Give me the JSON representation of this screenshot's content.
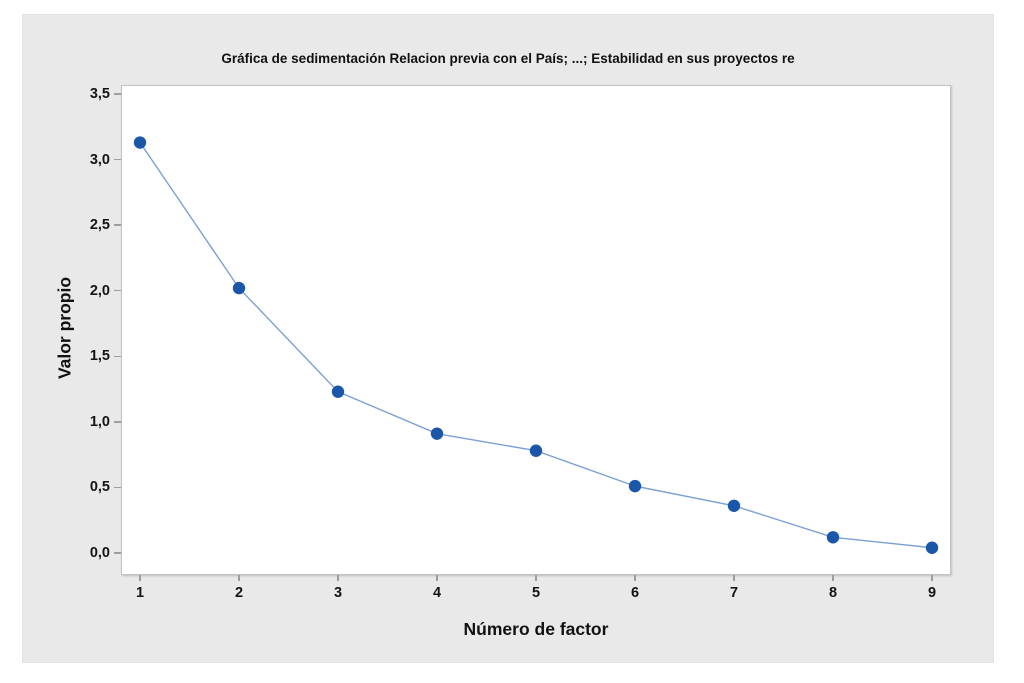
{
  "window": {
    "page_background": "#ffffff",
    "canvas_background": "#e9e9e9"
  },
  "chart": {
    "title": "Gráfica de sedimentación Relacion previa con el País; ...; Estabilidad en sus proyectos re",
    "xlabel": "Número de factor",
    "ylabel": "Valor propio"
  },
  "chart_data": {
    "type": "line",
    "title": "Gráfica de sedimentación Relacion previa con el País; ...; Estabilidad en sus proyectos re",
    "xlabel": "Número de factor",
    "ylabel": "Valor propio",
    "x": [
      1,
      2,
      3,
      4,
      5,
      6,
      7,
      8,
      9
    ],
    "values": [
      3.13,
      2.02,
      1.23,
      0.91,
      0.78,
      0.51,
      0.36,
      0.12,
      0.04
    ],
    "xtick_labels": [
      "1",
      "2",
      "3",
      "4",
      "5",
      "6",
      "7",
      "8",
      "9"
    ],
    "ytick_values": [
      0,
      0.5,
      1,
      1.5,
      2,
      2.5,
      3,
      3.5
    ],
    "ytick_labels": [
      "0,0",
      "0,5",
      "1,0",
      "1,5",
      "2,0",
      "2,5",
      "3,0",
      "3,5"
    ],
    "xlim": [
      0.6,
      9.2
    ],
    "ylim": [
      -0.08,
      3.58
    ],
    "grid": false,
    "legend": "none",
    "decimal_separator": ",",
    "marker_color": "#1a57a8",
    "line_color": "#7ba0d4",
    "tick_color": "#9e9e9e",
    "plot_border_color": "#c3c3c3"
  }
}
